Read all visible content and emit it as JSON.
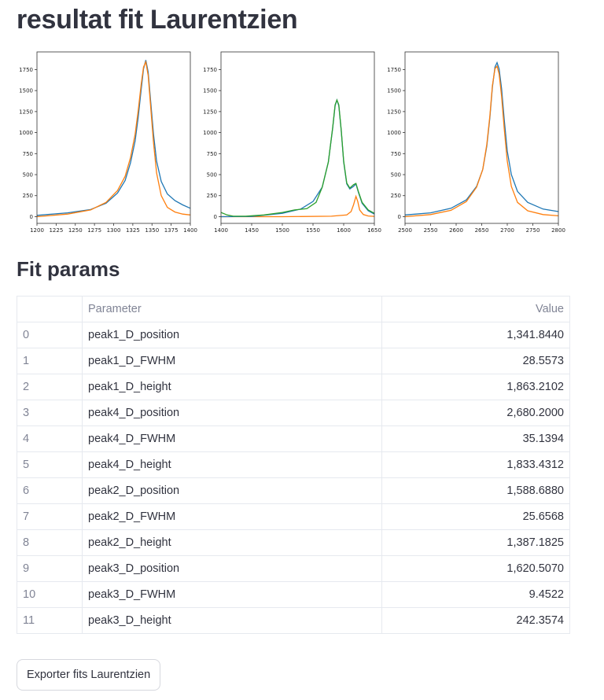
{
  "page": {
    "title": "resultat fit Laurentzien",
    "params_title": "Fit params",
    "export_label": "Exporter fits Laurentzien"
  },
  "colors": {
    "series_blue": "#1f77b4",
    "series_orange": "#ff7f0e",
    "series_green": "#2ca02c"
  },
  "chart_data": [
    {
      "type": "line",
      "xlim": [
        1200,
        1400
      ],
      "ylim": [
        -80,
        1960
      ],
      "x_ticks": [
        1200,
        1225,
        1250,
        1275,
        1300,
        1325,
        1350,
        1375,
        1400
      ],
      "y_ticks": [
        0,
        250,
        500,
        750,
        1000,
        1250,
        1500,
        1750
      ],
      "series": [
        {
          "color": "#1f77b4",
          "x": [
            1200,
            1240,
            1270,
            1290,
            1305,
            1315,
            1322,
            1328,
            1332,
            1336,
            1339,
            1342,
            1345,
            1348,
            1352,
            1356,
            1362,
            1370,
            1380,
            1390,
            1400
          ],
          "values": [
            15,
            45,
            85,
            160,
            280,
            430,
            640,
            900,
            1180,
            1520,
            1760,
            1863,
            1720,
            1400,
            980,
            660,
            420,
            270,
            190,
            140,
            100
          ]
        },
        {
          "color": "#ff7f0e",
          "x": [
            1200,
            1240,
            1270,
            1290,
            1305,
            1315,
            1322,
            1328,
            1332,
            1336,
            1339,
            1342,
            1345,
            1348,
            1352,
            1356,
            1362,
            1370,
            1380,
            1390,
            1400
          ],
          "values": [
            0,
            30,
            80,
            170,
            310,
            480,
            700,
            980,
            1260,
            1580,
            1780,
            1840,
            1680,
            1340,
            880,
            520,
            250,
            110,
            55,
            30,
            20
          ]
        }
      ]
    },
    {
      "type": "line",
      "xlim": [
        1400,
        1650
      ],
      "ylim": [
        -80,
        1960
      ],
      "x_ticks": [
        1400,
        1450,
        1500,
        1550,
        1600,
        1650
      ],
      "y_ticks": [
        0,
        250,
        500,
        750,
        1000,
        1250,
        1500,
        1750
      ],
      "series": [
        {
          "color": "#ff7f0e",
          "x": [
            1400,
            1500,
            1580,
            1605,
            1612,
            1616,
            1620,
            1623,
            1626,
            1632,
            1640,
            1650
          ],
          "values": [
            0,
            0,
            5,
            20,
            60,
            140,
            242,
            180,
            80,
            25,
            8,
            3
          ]
        },
        {
          "color": "#1f77b4",
          "x": [
            1400,
            1450,
            1500,
            1530,
            1550,
            1565,
            1575,
            1582,
            1586,
            1589,
            1592,
            1596,
            1600,
            1605,
            1610,
            1616,
            1620,
            1624,
            1630,
            1640,
            1650
          ],
          "values": [
            0,
            2,
            40,
            90,
            180,
            350,
            650,
            1050,
            1320,
            1387,
            1320,
            1020,
            650,
            390,
            330,
            360,
            390,
            290,
            160,
            70,
            30
          ]
        },
        {
          "color": "#2ca02c",
          "x": [
            1400,
            1410,
            1420,
            1440,
            1470,
            1500,
            1520,
            1540,
            1555,
            1565,
            1575,
            1582,
            1586,
            1589,
            1592,
            1596,
            1600,
            1605,
            1610,
            1616,
            1620,
            1624,
            1630,
            1640,
            1650
          ],
          "values": [
            50,
            20,
            5,
            5,
            20,
            50,
            80,
            95,
            170,
            350,
            650,
            1060,
            1330,
            1387,
            1330,
            1030,
            660,
            400,
            340,
            380,
            395,
            300,
            170,
            80,
            40
          ]
        }
      ]
    },
    {
      "type": "line",
      "xlim": [
        2500,
        2800
      ],
      "ylim": [
        -80,
        1960
      ],
      "x_ticks": [
        2500,
        2550,
        2600,
        2650,
        2700,
        2750,
        2800
      ],
      "y_ticks": [
        0,
        250,
        500,
        750,
        1000,
        1250,
        1500,
        1750
      ],
      "series": [
        {
          "color": "#1f77b4",
          "x": [
            2500,
            2550,
            2590,
            2620,
            2640,
            2652,
            2660,
            2666,
            2671,
            2676,
            2680,
            2684,
            2689,
            2694,
            2700,
            2708,
            2720,
            2740,
            2770,
            2800
          ],
          "values": [
            20,
            45,
            100,
            200,
            360,
            560,
            840,
            1180,
            1540,
            1780,
            1833,
            1760,
            1520,
            1160,
            780,
            500,
            300,
            170,
            90,
            60
          ]
        },
        {
          "color": "#ff7f0e",
          "x": [
            2500,
            2550,
            2590,
            2620,
            2640,
            2652,
            2660,
            2666,
            2671,
            2676,
            2680,
            2684,
            2689,
            2694,
            2700,
            2708,
            2720,
            2740,
            2770,
            2800
          ],
          "values": [
            0,
            25,
            75,
            180,
            350,
            560,
            860,
            1200,
            1560,
            1760,
            1790,
            1700,
            1430,
            1050,
            660,
            360,
            170,
            70,
            25,
            10
          ]
        }
      ]
    }
  ],
  "table": {
    "columns": [
      "",
      "Parameter",
      "Value"
    ],
    "rows": [
      [
        "0",
        "peak1_D_position",
        "1,341.8440"
      ],
      [
        "1",
        "peak1_D_FWHM",
        "28.5573"
      ],
      [
        "2",
        "peak1_D_height",
        "1,863.2102"
      ],
      [
        "3",
        "peak4_D_position",
        "2,680.2000"
      ],
      [
        "4",
        "peak4_D_FWHM",
        "35.1394"
      ],
      [
        "5",
        "peak4_D_height",
        "1,833.4312"
      ],
      [
        "6",
        "peak2_D_position",
        "1,588.6880"
      ],
      [
        "7",
        "peak2_D_FWHM",
        "25.6568"
      ],
      [
        "8",
        "peak2_D_height",
        "1,387.1825"
      ],
      [
        "9",
        "peak3_D_position",
        "1,620.5070"
      ],
      [
        "10",
        "peak3_D_FWHM",
        "9.4522"
      ],
      [
        "11",
        "peak3_D_height",
        "242.3574"
      ]
    ]
  }
}
